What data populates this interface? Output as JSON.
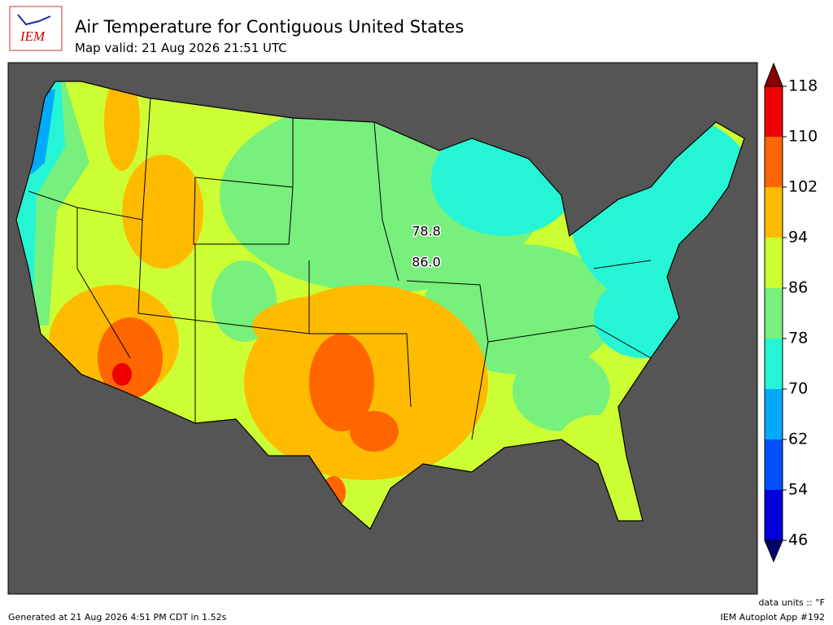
{
  "header": {
    "logo": "IEM",
    "title": "Air Temperature for Contiguous United States",
    "subtitle": "Map valid: 21 Aug 2026 21:51 UTC"
  },
  "map": {
    "contour_labels": [
      "78.8",
      "86.0"
    ]
  },
  "colorbar": {
    "ticks": [
      46,
      54,
      62,
      70,
      78,
      86,
      94,
      102,
      110,
      118
    ],
    "colors": [
      "#0000d8",
      "#0050ff",
      "#00aaff",
      "#25f5d5",
      "#78f07c",
      "#ccff33",
      "#ffbb00",
      "#ff6600",
      "#ee0000"
    ],
    "under_color": "#000070",
    "over_color": "#880000",
    "units": "data units :: °F"
  },
  "footer": {
    "left": "Generated at 21 Aug 2026 4:51 PM CDT in 1.52s",
    "right": "IEM Autoplot App #192"
  }
}
